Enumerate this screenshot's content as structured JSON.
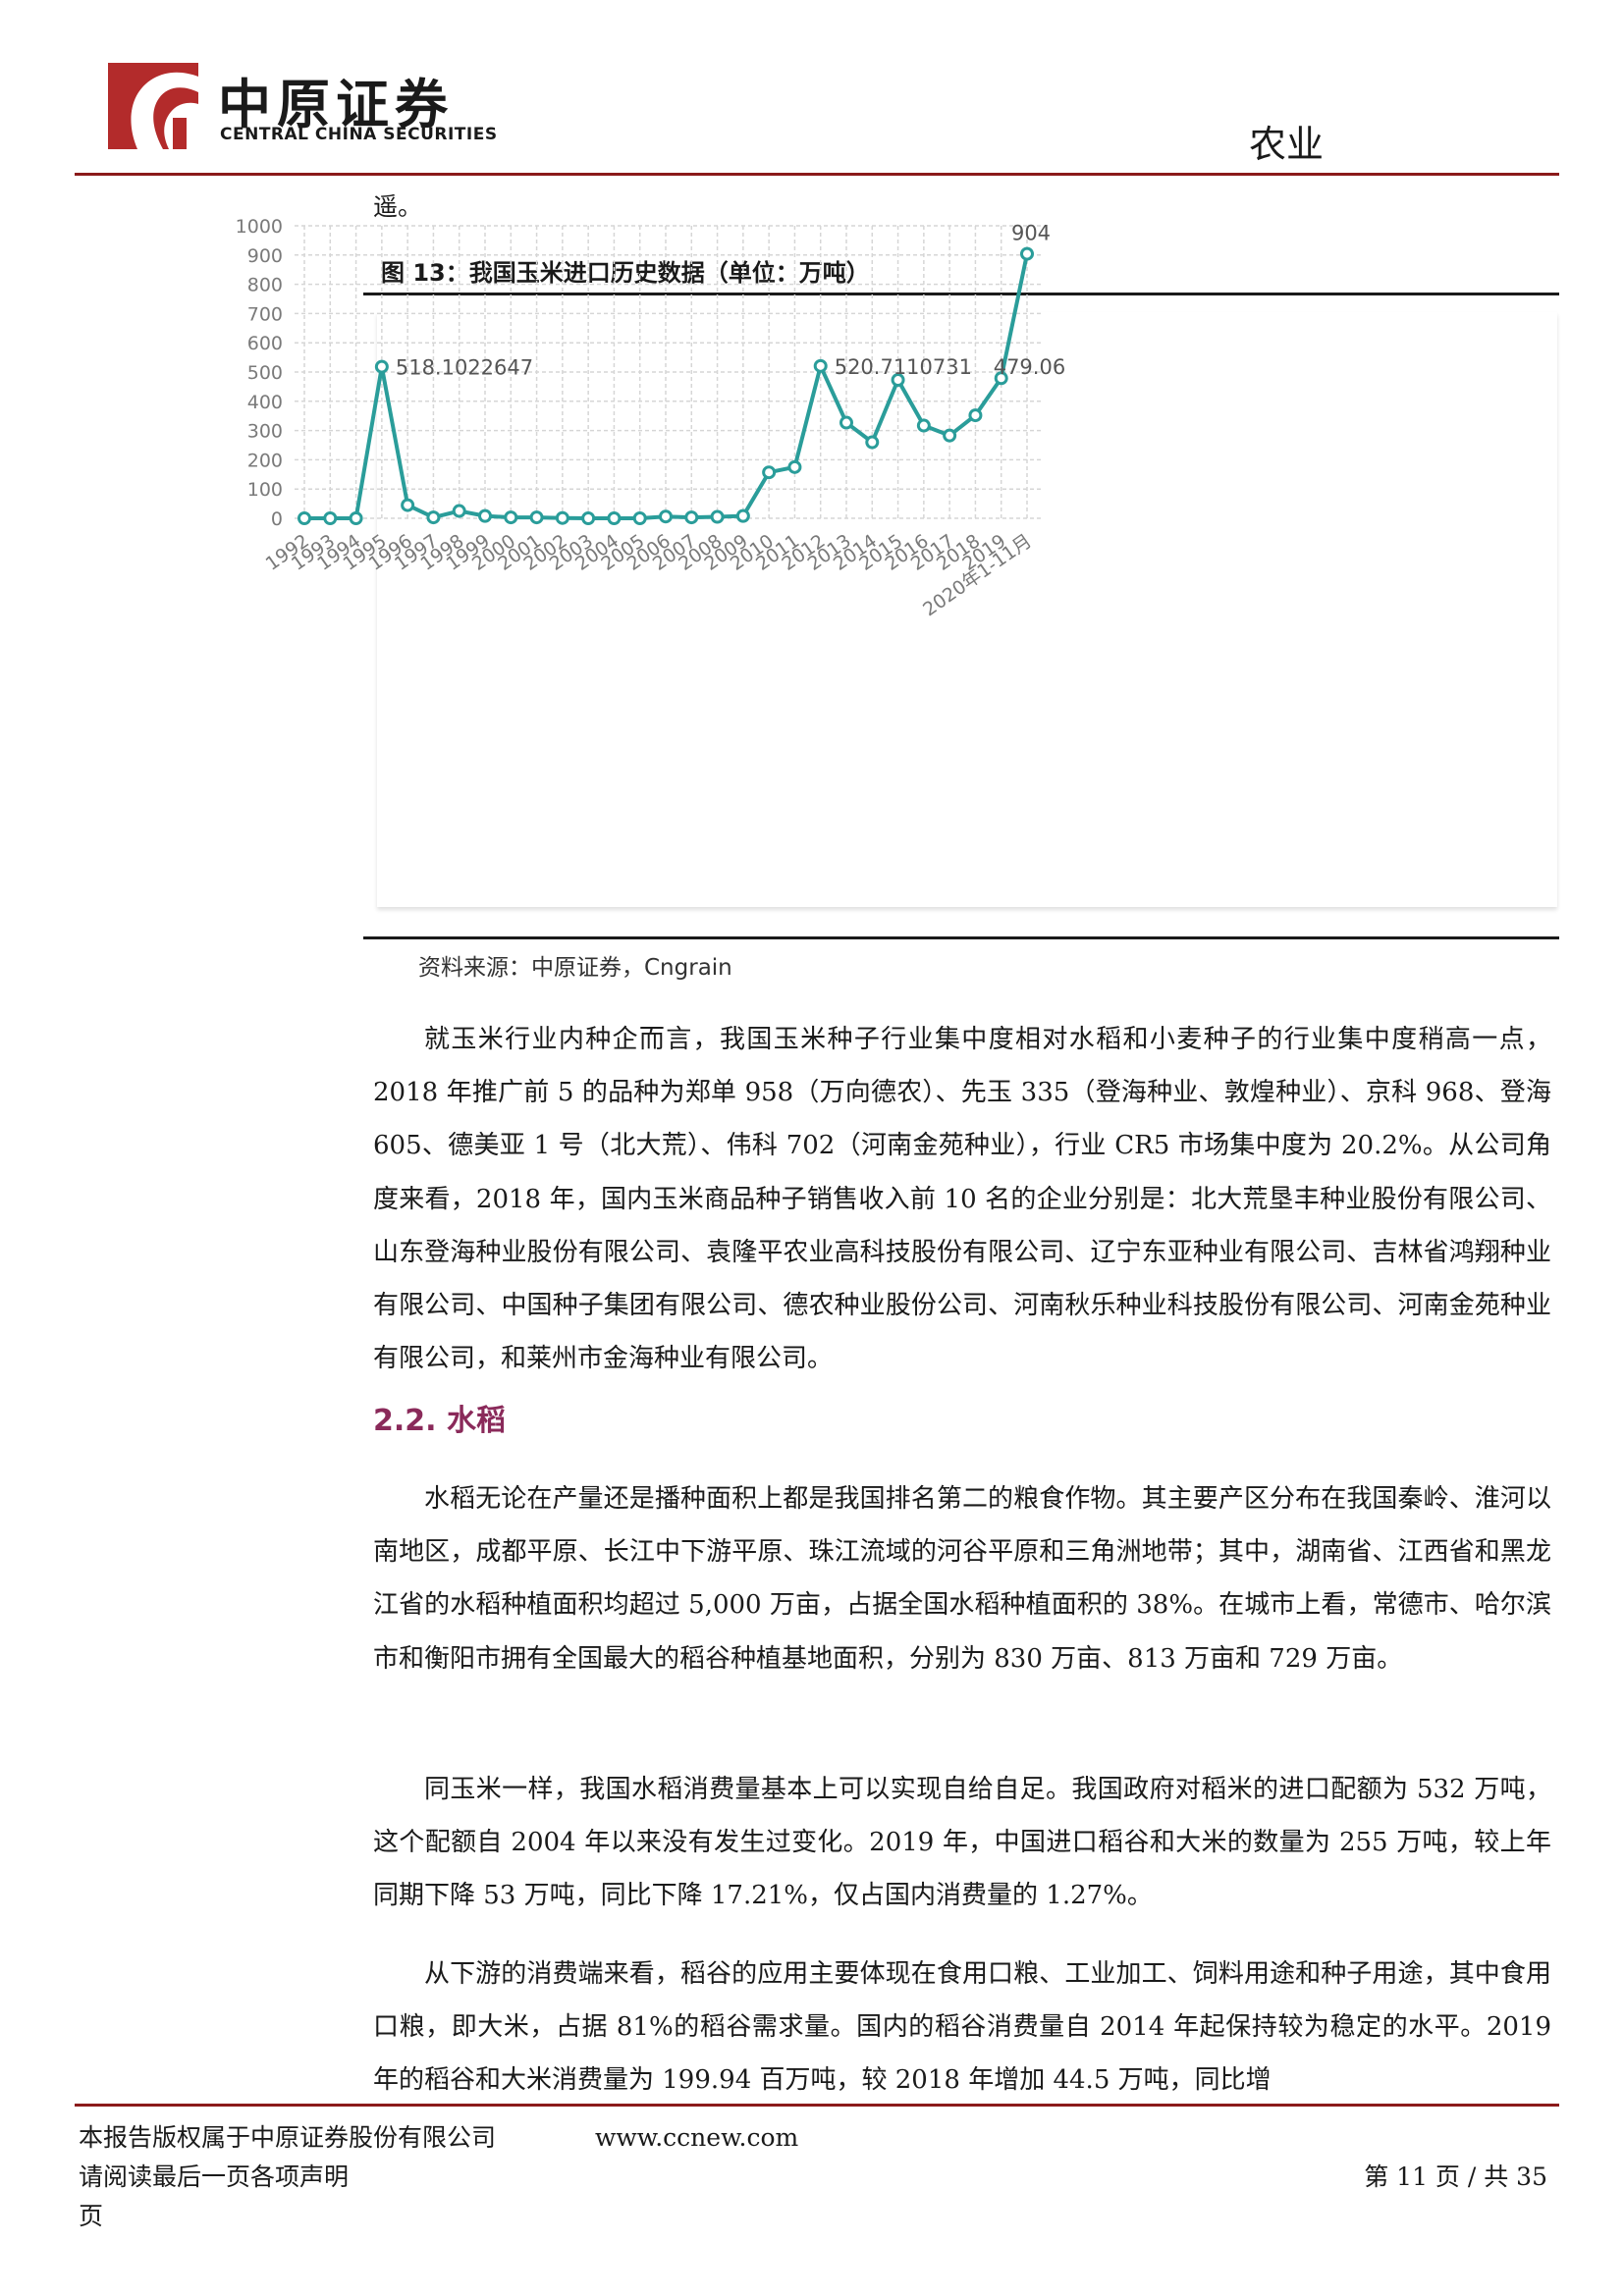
{
  "header": {
    "logo_cn": "中原证券",
    "logo_en": "CENTRAL CHINA SECURITIES",
    "sector": "农业",
    "brand_color": "#8b1a1a"
  },
  "lead_text": "遥。",
  "figure": {
    "title": "图 13：我国玉米进口历史数据（单位：万吨）",
    "source": "资料来源：中原证券，Cngrain"
  },
  "chart_data": {
    "type": "line",
    "title": "",
    "xlabel": "",
    "ylabel": "",
    "ylim": [
      0,
      1000
    ],
    "yticks": [
      0,
      100,
      200,
      300,
      400,
      500,
      600,
      700,
      800,
      900,
      1000
    ],
    "grid": true,
    "line_color": "#2a9d9a",
    "categories": [
      "1992",
      "1993",
      "1994",
      "1995",
      "1996",
      "1997",
      "1998",
      "1999",
      "2000",
      "2001",
      "2002",
      "2003",
      "2004",
      "2005",
      "2006",
      "2007",
      "2008",
      "2009",
      "2010",
      "2011",
      "2012",
      "2013",
      "2014",
      "2015",
      "2016",
      "2017",
      "2018",
      "2019",
      "2020年1-11月"
    ],
    "values": [
      0,
      0,
      0,
      518.1,
      45,
      3,
      25,
      8,
      3,
      3,
      1,
      0,
      0,
      0,
      6,
      3,
      5,
      8,
      157,
      175,
      520.7,
      327,
      260,
      473,
      317,
      283,
      352,
      479.06,
      904
    ],
    "annotations": [
      {
        "index": 3,
        "label": "518.1022647"
      },
      {
        "index": 20,
        "label": "520.7110731"
      },
      {
        "index": 27,
        "label": "479.06"
      },
      {
        "index": 28,
        "label": "904"
      }
    ]
  },
  "paragraphs": {
    "p1": "就玉米行业内种企而言，我国玉米种子行业集中度相对水稻和小麦种子的行业集中度稍高一点，2018 年推广前 5 的品种为郑单 958（万向德农）、先玉 335（登海种业、敦煌种业）、京科 968、登海 605、德美亚 1 号（北大荒）、伟科 702（河南金苑种业），行业 CR5 市场集中度为 20.2%。从公司角度来看，2018 年，国内玉米商品种子销售收入前 10 名的企业分别是：北大荒垦丰种业股份有限公司、山东登海种业股份有限公司、袁隆平农业高科技股份有限公司、辽宁东亚种业有限公司、吉林省鸿翔种业有限公司、中国种子集团有限公司、德农种业股份公司、河南秋乐种业科技股份有限公司、河南金苑种业有限公司，和莱州市金海种业有限公司。",
    "section_heading": "2.2. 水稻",
    "p2": "水稻无论在产量还是播种面积上都是我国排名第二的粮食作物。其主要产区分布在我国秦岭、淮河以南地区，成都平原、长江中下游平原、珠江流域的河谷平原和三角洲地带；其中，湖南省、江西省和黑龙江省的水稻种植面积均超过 5,000 万亩，占据全国水稻种植面积的 38%。在城市上看，常德市、哈尔滨市和衡阳市拥有全国最大的稻谷种植基地面积，分别为 830 万亩、813 万亩和 729 万亩。",
    "p3": "同玉米一样，我国水稻消费量基本上可以实现自给自足。我国政府对稻米的进口配额为 532 万吨，这个配额自 2004 年以来没有发生过变化。2019 年，中国进口稻谷和大米的数量为 255 万吨，较上年同期下降 53 万吨，同比下降 17.21%，仅占国内消费量的 1.27%。",
    "p4": "从下游的消费端来看，稻谷的应用主要体现在食用口粮、工业加工、饲料用途和种子用途，其中食用口粮，即大米，占据 81%的稻谷需求量。国内的稻谷消费量自 2014 年起保持较为稳定的水平。2019 年的稻谷和大米消费量为 199.94 百万吨，较 2018 年增加 44.5 万吨，同比增"
  },
  "footer": {
    "copyright": "本报告版权属于中原证券股份有限公司",
    "url": "www.ccnew.com",
    "notice": "请阅读最后一页各项声明",
    "page_label": "第 11 页 / 共 35",
    "page_tail": "页"
  }
}
